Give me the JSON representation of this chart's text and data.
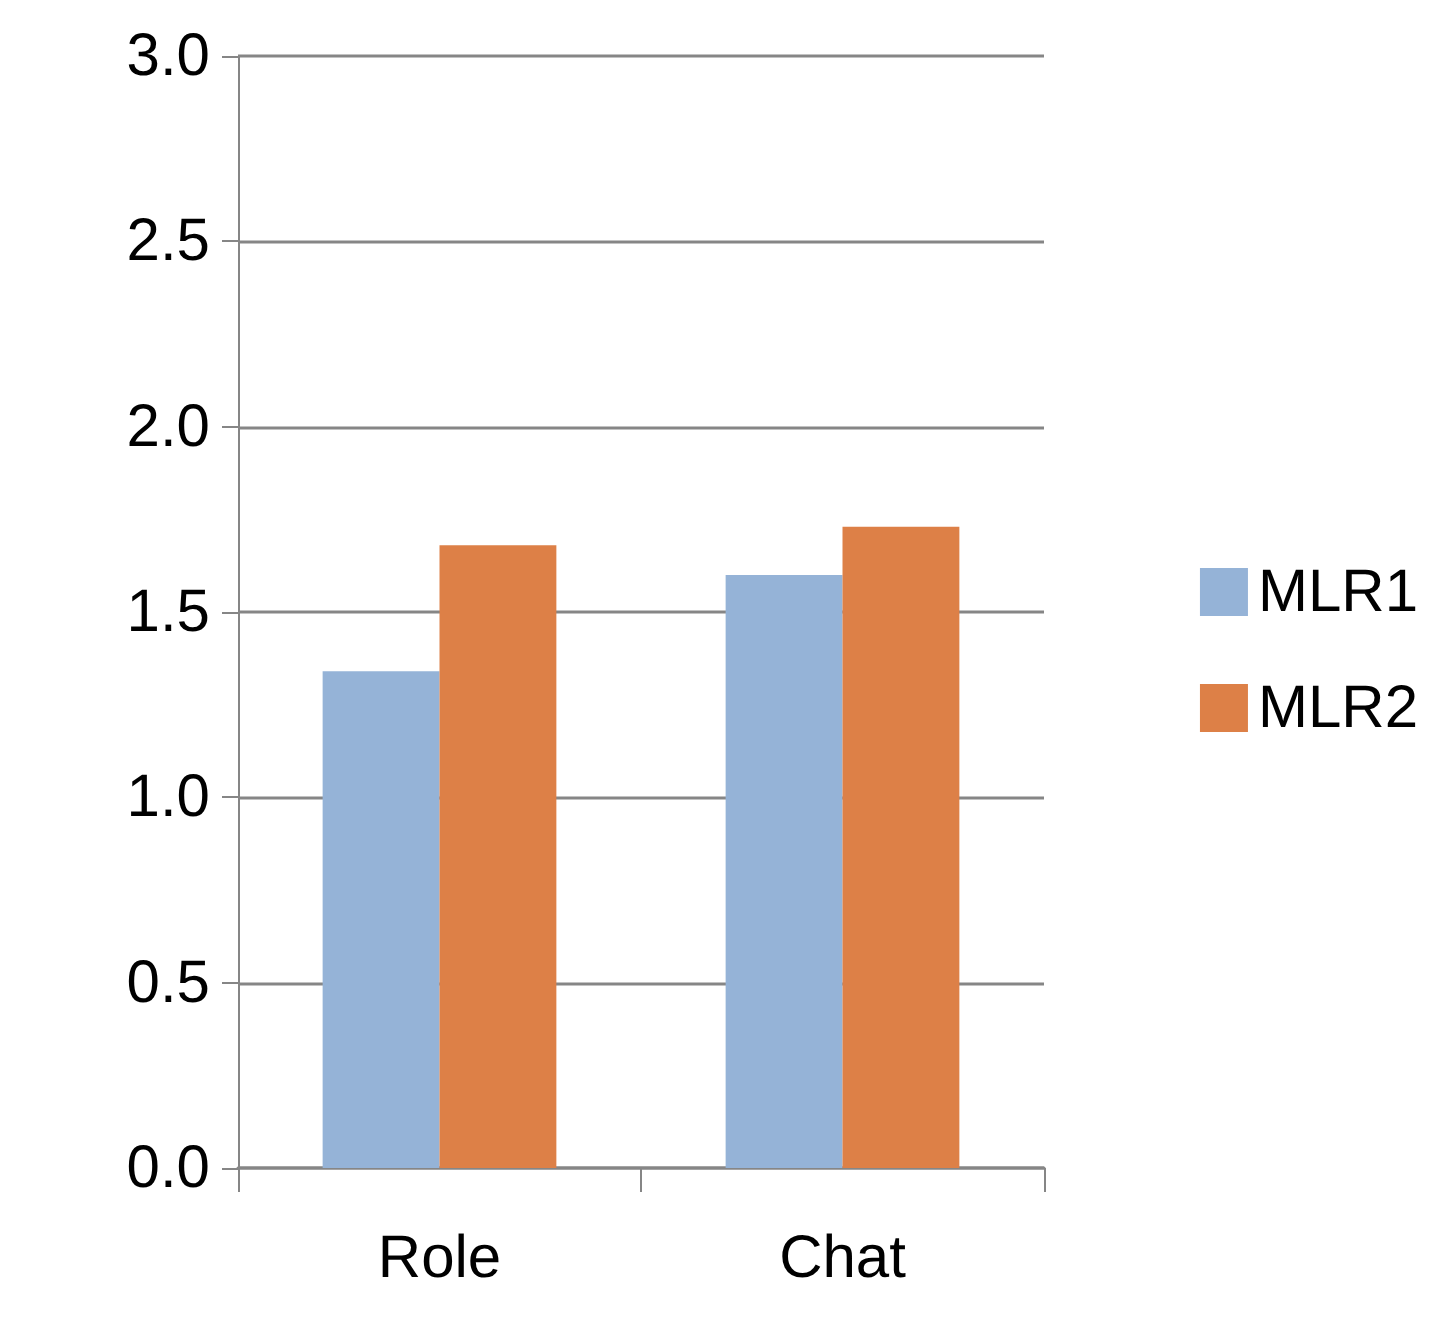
{
  "chart_data": {
    "type": "bar",
    "categories": [
      "Role",
      "Chat"
    ],
    "series": [
      {
        "name": "MLR1",
        "color": "#95b3d7",
        "values": [
          1.34,
          1.6
        ]
      },
      {
        "name": "MLR2",
        "color": "#dd8047",
        "values": [
          1.68,
          1.73
        ]
      }
    ],
    "ylim": [
      0,
      3
    ],
    "yticks": [
      {
        "value": 0,
        "label": "0.0"
      },
      {
        "value": 0.5,
        "label": "0.5"
      },
      {
        "value": 1,
        "label": "1.0"
      },
      {
        "value": 1.5,
        "label": "1.5"
      },
      {
        "value": 2,
        "label": "2.0"
      },
      {
        "value": 2.5,
        "label": "2.5"
      },
      {
        "value": 3,
        "label": "3.0"
      }
    ],
    "grid": "y",
    "legend": "right"
  }
}
